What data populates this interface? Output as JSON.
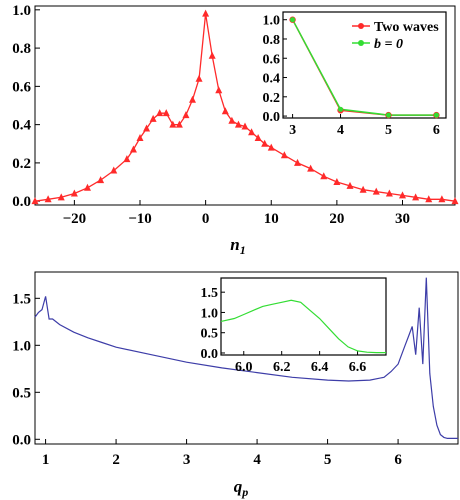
{
  "chart_data": [
    {
      "type": "line",
      "panel": "top-main",
      "xlabel": "n",
      "xlabel_sub": "1",
      "ylabel": "",
      "xlim": [
        -26,
        38
      ],
      "ylim": [
        -0.02,
        1.02
      ],
      "xticks": [
        -20,
        -10,
        0,
        10,
        20,
        30
      ],
      "yticks": [
        0.0,
        0.2,
        0.4,
        0.6,
        0.8,
        1.0
      ],
      "xtick_labels": [
        "−20",
        "−10",
        "0",
        "10",
        "20",
        "30"
      ],
      "ytick_labels": [
        "0.0",
        "0.2",
        "0.4",
        "0.6",
        "0.8",
        "1.0"
      ],
      "grid": false,
      "series": [
        {
          "color": "#ff2a2a",
          "marker": "triangle",
          "x": [
            -26,
            -24,
            -22,
            -20,
            -18,
            -16,
            -14,
            -12,
            -11,
            -10,
            -9,
            -8,
            -7,
            -6,
            -5,
            -4,
            -3,
            -2,
            -1,
            0,
            1,
            2,
            3,
            4,
            5,
            6,
            7,
            8,
            9,
            10,
            12,
            14,
            16,
            18,
            20,
            22,
            24,
            26,
            28,
            30,
            32,
            34,
            36,
            38
          ],
          "values": [
            0.0,
            0.01,
            0.02,
            0.04,
            0.07,
            0.11,
            0.16,
            0.22,
            0.27,
            0.33,
            0.38,
            0.43,
            0.46,
            0.46,
            0.4,
            0.4,
            0.45,
            0.53,
            0.64,
            0.98,
            0.76,
            0.58,
            0.47,
            0.42,
            0.4,
            0.39,
            0.36,
            0.33,
            0.3,
            0.28,
            0.24,
            0.2,
            0.17,
            0.13,
            0.1,
            0.08,
            0.06,
            0.05,
            0.04,
            0.03,
            0.02,
            0.01,
            0.01,
            0.0
          ]
        }
      ]
    },
    {
      "type": "line",
      "panel": "top-inset",
      "xlim": [
        2.8,
        6.2
      ],
      "ylim": [
        -0.02,
        1.08
      ],
      "xticks": [
        3,
        4,
        5,
        6
      ],
      "yticks": [
        0.0,
        0.2,
        0.4,
        0.6,
        0.8,
        1.0
      ],
      "xtick_labels": [
        "3",
        "4",
        "5",
        "6"
      ],
      "ytick_labels": [
        "0.0",
        "0.2",
        "0.4",
        "0.6",
        "0.8",
        "1.0"
      ],
      "legend_position": "top-right",
      "series": [
        {
          "name": "Two waves",
          "color": "#ff2a2a",
          "x": [
            3,
            4,
            5,
            6
          ],
          "values": [
            1.0,
            0.06,
            0.01,
            0.01
          ]
        },
        {
          "name": "b = 0",
          "color": "#33dd33",
          "x": [
            3,
            4,
            5,
            6
          ],
          "values": [
            1.0,
            0.07,
            0.01,
            0.01
          ]
        }
      ]
    },
    {
      "type": "line",
      "panel": "bottom-main",
      "xlabel": "q",
      "xlabel_sub": "p",
      "xlim": [
        0.85,
        6.85
      ],
      "ylim": [
        -0.05,
        1.78
      ],
      "xticks": [
        1,
        2,
        3,
        4,
        5,
        6
      ],
      "yticks": [
        0.0,
        0.5,
        1.0,
        1.5
      ],
      "xtick_labels": [
        "1",
        "2",
        "3",
        "4",
        "5",
        "6"
      ],
      "ytick_labels": [
        "0.0",
        "0.5",
        "1.0",
        "1.5"
      ],
      "series": [
        {
          "color": "#3d3da8",
          "x": [
            0.85,
            0.9,
            0.95,
            1.0,
            1.05,
            1.1,
            1.2,
            1.4,
            1.6,
            1.8,
            2.0,
            2.5,
            3.0,
            3.5,
            4.0,
            4.5,
            5.0,
            5.3,
            5.6,
            5.8,
            5.9,
            6.0,
            6.1,
            6.15,
            6.2,
            6.25,
            6.3,
            6.35,
            6.4,
            6.45,
            6.5,
            6.55,
            6.6,
            6.65,
            6.7,
            6.85
          ],
          "values": [
            1.3,
            1.35,
            1.38,
            1.52,
            1.28,
            1.28,
            1.22,
            1.14,
            1.08,
            1.03,
            0.98,
            0.9,
            0.82,
            0.76,
            0.71,
            0.66,
            0.63,
            0.62,
            0.63,
            0.66,
            0.72,
            0.8,
            1.0,
            1.1,
            1.2,
            0.9,
            1.4,
            0.8,
            1.72,
            0.7,
            0.35,
            0.15,
            0.05,
            0.02,
            0.01,
            0.01
          ]
        }
      ]
    },
    {
      "type": "line",
      "panel": "bottom-inset",
      "xlim": [
        5.88,
        6.75
      ],
      "ylim": [
        -0.05,
        1.85
      ],
      "xticks": [
        6.0,
        6.2,
        6.4,
        6.6
      ],
      "yticks": [
        0.0,
        0.5,
        1.0,
        1.5
      ],
      "xtick_labels": [
        "6.0",
        "6.2",
        "6.4",
        "6.6"
      ],
      "ytick_labels": [
        "0.0",
        "0.5",
        "1.0",
        "1.5"
      ],
      "series": [
        {
          "color": "#33dd33",
          "x": [
            5.88,
            5.95,
            6.0,
            6.05,
            6.1,
            6.15,
            6.2,
            6.25,
            6.3,
            6.35,
            6.4,
            6.45,
            6.5,
            6.55,
            6.6,
            6.65,
            6.7,
            6.75
          ],
          "values": [
            0.78,
            0.85,
            0.95,
            1.05,
            1.15,
            1.2,
            1.25,
            1.3,
            1.25,
            1.05,
            0.85,
            0.6,
            0.35,
            0.15,
            0.05,
            0.02,
            0.01,
            0.01
          ]
        }
      ]
    }
  ]
}
